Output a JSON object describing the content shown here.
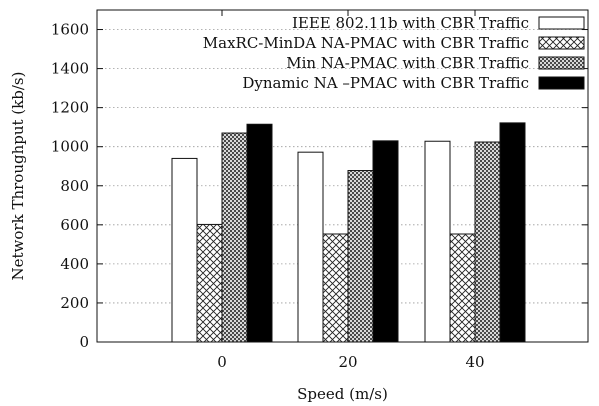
{
  "chart_data": {
    "type": "bar",
    "xlabel": "Speed (m/s)",
    "ylabel": "Network Throughput (kb/s)",
    "ylim": [
      0,
      1700
    ],
    "yticks": [
      0,
      200,
      400,
      600,
      800,
      1000,
      1200,
      1400,
      1600
    ],
    "categories": [
      "0",
      "20",
      "40"
    ],
    "grid": "horizontal dotted",
    "legend_position": "top-right",
    "series": [
      {
        "name": "IEEE 802.11b with CBR Traffic",
        "fill": "white",
        "values": [
          940,
          972,
          1028
        ]
      },
      {
        "name": "MaxRC-MinDA NA-PMAC with CBR Traffic",
        "fill": "crosshatch",
        "values": [
          602,
          553,
          553
        ]
      },
      {
        "name": "Min NA-PMAC with CBR Traffic",
        "fill": "dense-check",
        "values": [
          1070,
          878,
          1024
        ]
      },
      {
        "name": "Dynamic NA –PMAC with CBR Traffic",
        "fill": "black",
        "values": [
          1115,
          1030,
          1122
        ]
      }
    ]
  }
}
